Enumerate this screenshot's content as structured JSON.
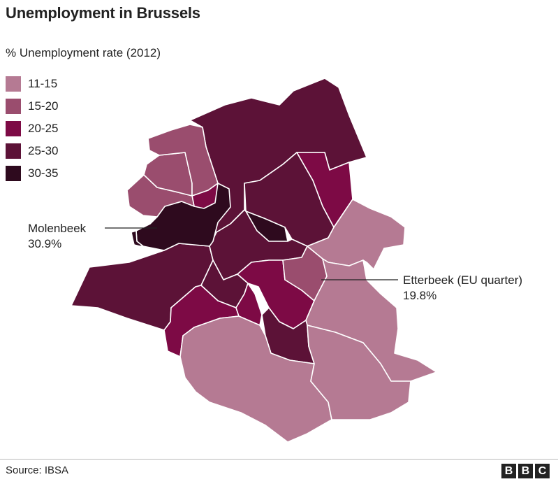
{
  "title": "Unemployment in Brussels",
  "subtitle": "% Unemployment rate (2012)",
  "legend": [
    {
      "label": "11-15",
      "color": "#b57a93"
    },
    {
      "label": "15-20",
      "color": "#9a4d6e"
    },
    {
      "label": "20-25",
      "color": "#7d0a45"
    },
    {
      "label": "25-30",
      "color": "#5c1237"
    },
    {
      "label": "30-35",
      "color": "#2e0a1e"
    }
  ],
  "callouts": {
    "molenbeek": {
      "name": "Molenbeek",
      "value": "30.9%"
    },
    "etterbeek": {
      "name": "Etterbeek (EU quarter)",
      "value": "19.8%"
    }
  },
  "footer": {
    "source": "Source: IBSA",
    "logo_letters": [
      "B",
      "B",
      "C"
    ]
  }
}
